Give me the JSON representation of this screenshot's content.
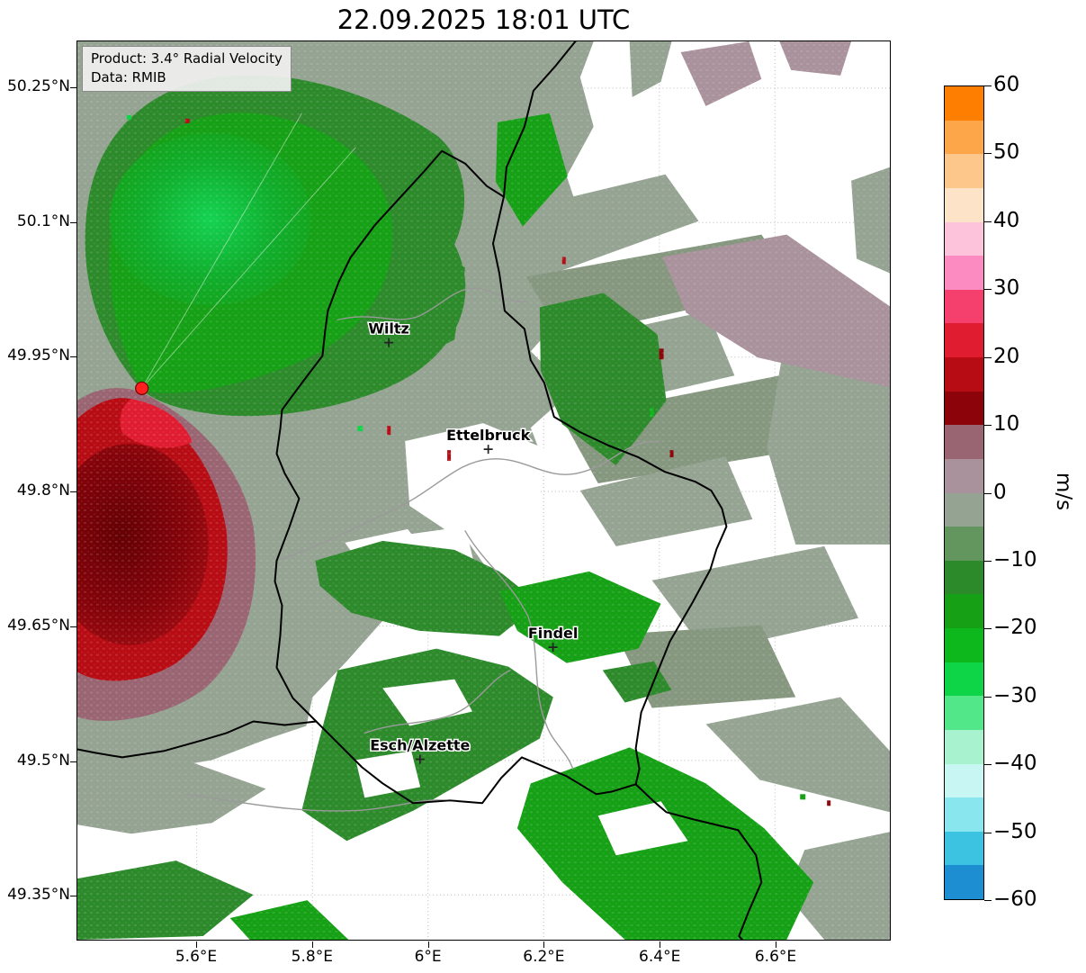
{
  "title": "22.09.2025 18:01 UTC",
  "info_box": {
    "line1": "Product: 3.4° Radial Velocity",
    "line2": "Data: RMIB"
  },
  "axes": {
    "y_ticks": [
      "50.25°N",
      "50.1°N",
      "49.95°N",
      "49.8°N",
      "49.65°N",
      "49.5°N",
      "49.35°N"
    ],
    "x_ticks": [
      "5.6°E",
      "5.8°E",
      "6°E",
      "6.2°E",
      "6.4°E",
      "6.6°E"
    ]
  },
  "colorbar": {
    "label": "m/s",
    "tick_labels": [
      "60",
      "50",
      "40",
      "30",
      "20",
      "10",
      "0",
      "−10",
      "−20",
      "−30",
      "−40",
      "−50",
      "−60"
    ],
    "min": -60,
    "max": 60,
    "stops_top_to_bottom": [
      "#fd7e00",
      "#fda649",
      "#fdc78c",
      "#fde3c8",
      "#fdc3da",
      "#fb8bc0",
      "#f53f6c",
      "#e01c31",
      "#b80c14",
      "#8c040a",
      "#9a6573",
      "#a9929c",
      "#95a392",
      "#63965f",
      "#2d8a2b",
      "#15a015",
      "#0cb81c",
      "#0ed447",
      "#52e88a",
      "#a8f2d0",
      "#c8f6f2",
      "#8ae6ee",
      "#3cc3e2",
      "#1e8ed2"
    ]
  },
  "palette": {
    "c-zeroneg": "#95a392",
    "c-zeroneg2": "#86977f",
    "c-zeropos": "#a9929c",
    "c-pos5": "#9a6573",
    "c-pos10": "#8c040a",
    "c-pos15": "#b80c14",
    "c-pos20": "#e01c31",
    "c-neg10": "#2d8a2b",
    "c-neg15": "#15a015",
    "c-neg20": "#0cb81c",
    "c-neg25": "#0ed447",
    "c-border": "#000000",
    "c-inner-border": "#9a9a9a",
    "c-radar": "#ff1f1f"
  },
  "chart_data": {
    "type": "heatmap",
    "title": "22.09.2025 18:01 UTC",
    "product": "3.4° Radial Velocity",
    "data_source": "RMIB",
    "unit": "m/s",
    "xlim": [
      5.3935,
      6.7985
    ],
    "ylim": [
      49.2997,
      50.3021
    ],
    "x_ticks_deg_e": [
      5.6,
      5.8,
      6.0,
      6.2,
      6.4,
      6.6
    ],
    "y_ticks_deg_n": [
      50.25,
      50.1,
      49.95,
      49.8,
      49.65,
      49.5,
      49.35
    ],
    "colorbar_range_ms": [
      -60,
      60
    ],
    "colorbar_tick_step_ms": 10,
    "radar_site": {
      "lon": 5.505,
      "lat": 49.915
    },
    "cities": [
      {
        "name": "Wiltz",
        "lon": 5.932,
        "lat": 49.966
      },
      {
        "name": "Ettelbruck",
        "lon": 6.104,
        "lat": 49.847
      },
      {
        "name": "Findel",
        "lon": 6.216,
        "lat": 49.626
      },
      {
        "name": "Esch/Alzette",
        "lon": 5.986,
        "lat": 49.501
      }
    ],
    "velocity_regions": [
      {
        "sign": "negative (toward radar)",
        "approx_range_ms": "-10 to -30",
        "location": "broad green lobe north-northeast of the radar site, brightest core near 5.55°E 50.05°N extending to Wiltz"
      },
      {
        "sign": "positive (away from radar)",
        "approx_range_ms": "+5 to +20",
        "location": "red lobe south of the radar site along the western map edge, darkest red core near 5.45°E 49.75°N with mauve fringe"
      },
      {
        "sign": "near zero",
        "approx_range_ms": "-5 to +5",
        "location": "widespread gray-green field over the west and center; gray-mauve patches in the northeast and along the eastern edge"
      },
      {
        "sign": "negative",
        "approx_range_ms": "-10 to -20",
        "location": "patchy dark green bands across the south around Esch/Alzette and Findel and an area east of the Our border near 6.3°E 49.95°N"
      },
      {
        "sign": "no data",
        "approx_range_ms": "white gaps",
        "location": "upper right quadrant, around Ettelbruck, and much of the south-central area"
      }
    ]
  }
}
